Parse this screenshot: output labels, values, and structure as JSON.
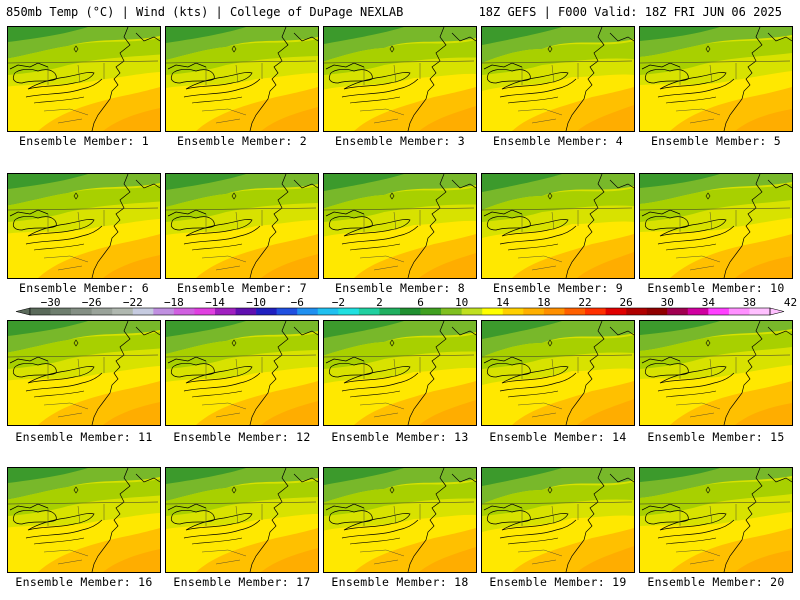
{
  "header": {
    "left": "850mb Temp (°C) | Wind (kts) | College of DuPage NEXLAB",
    "right": "18Z GEFS | F000 Valid: 18Z FRI JUN 06 2025"
  },
  "panels": [
    {
      "label": "Ensemble Member: 1"
    },
    {
      "label": "Ensemble Member: 2"
    },
    {
      "label": "Ensemble Member: 3"
    },
    {
      "label": "Ensemble Member: 4"
    },
    {
      "label": "Ensemble Member: 5"
    },
    {
      "label": "Ensemble Member: 6"
    },
    {
      "label": "Ensemble Member: 7"
    },
    {
      "label": "Ensemble Member: 8"
    },
    {
      "label": "Ensemble Member: 9"
    },
    {
      "label": "Ensemble Member: 10"
    },
    {
      "label": "Ensemble Member: 11"
    },
    {
      "label": "Ensemble Member: 12"
    },
    {
      "label": "Ensemble Member: 13"
    },
    {
      "label": "Ensemble Member: 14"
    },
    {
      "label": "Ensemble Member: 15"
    },
    {
      "label": "Ensemble Member: 16"
    },
    {
      "label": "Ensemble Member: 17"
    },
    {
      "label": "Ensemble Member: 18"
    },
    {
      "label": "Ensemble Member: 19"
    },
    {
      "label": "Ensemble Member: 20"
    }
  ],
  "colorbar": {
    "ticks": [
      "−30",
      "−26",
      "−22",
      "−18",
      "−14",
      "−10",
      "−6",
      "−2",
      "2",
      "6",
      "10",
      "14",
      "18",
      "22",
      "26",
      "30",
      "34",
      "38",
      "42"
    ],
    "colors": [
      "#5a6a5a",
      "#6e7e6e",
      "#848f84",
      "#9aa39a",
      "#b0b8b0",
      "#c6cbe0",
      "#c090e0",
      "#d060e0",
      "#e040e0",
      "#a020c0",
      "#6010b0",
      "#2020c0",
      "#2050e0",
      "#2090f0",
      "#20c0f0",
      "#20e0e0",
      "#20d0a0",
      "#20b060",
      "#209030",
      "#40a020",
      "#80c020",
      "#c0e020",
      "#ffff00",
      "#ffd000",
      "#ffb000",
      "#ff9000",
      "#ff6000",
      "#ff3000",
      "#e00000",
      "#b00000",
      "#900000",
      "#a00050",
      "#d000a0",
      "#ff40ff",
      "#ff90ff",
      "#ffc0ff"
    ]
  }
}
